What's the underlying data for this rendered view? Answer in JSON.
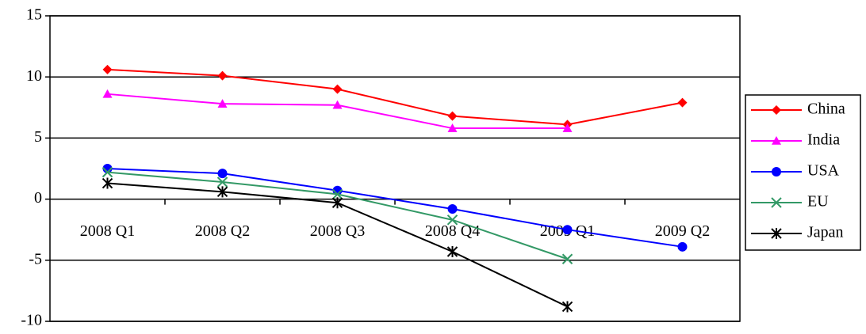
{
  "chart_data": {
    "type": "line",
    "categories": [
      "2008 Q1",
      "2008 Q2",
      "2008 Q3",
      "2008 Q4",
      "2009 Q1",
      "2009 Q2"
    ],
    "series": [
      {
        "name": "China",
        "color": "#ff0000",
        "marker": "diamond",
        "values": [
          10.6,
          10.1,
          9.0,
          6.8,
          6.1,
          7.9
        ]
      },
      {
        "name": "India",
        "color": "#ff00ff",
        "marker": "triangle",
        "values": [
          8.6,
          7.8,
          7.7,
          5.8,
          5.8,
          null
        ]
      },
      {
        "name": "USA",
        "color": "#0000ff",
        "marker": "circle",
        "values": [
          2.5,
          2.1,
          0.7,
          -0.8,
          -2.5,
          -3.9
        ]
      },
      {
        "name": "EU",
        "color": "#339966",
        "marker": "x",
        "values": [
          2.2,
          1.4,
          0.4,
          -1.7,
          -4.9,
          null
        ]
      },
      {
        "name": "Japan",
        "color": "#000000",
        "marker": "star",
        "values": [
          1.3,
          0.6,
          -0.3,
          -4.3,
          -8.8,
          null
        ]
      }
    ],
    "ylim": [
      -10,
      15
    ],
    "yticks": [
      -10,
      -5,
      0,
      5,
      10,
      15
    ],
    "grid": true,
    "legend": "right"
  }
}
